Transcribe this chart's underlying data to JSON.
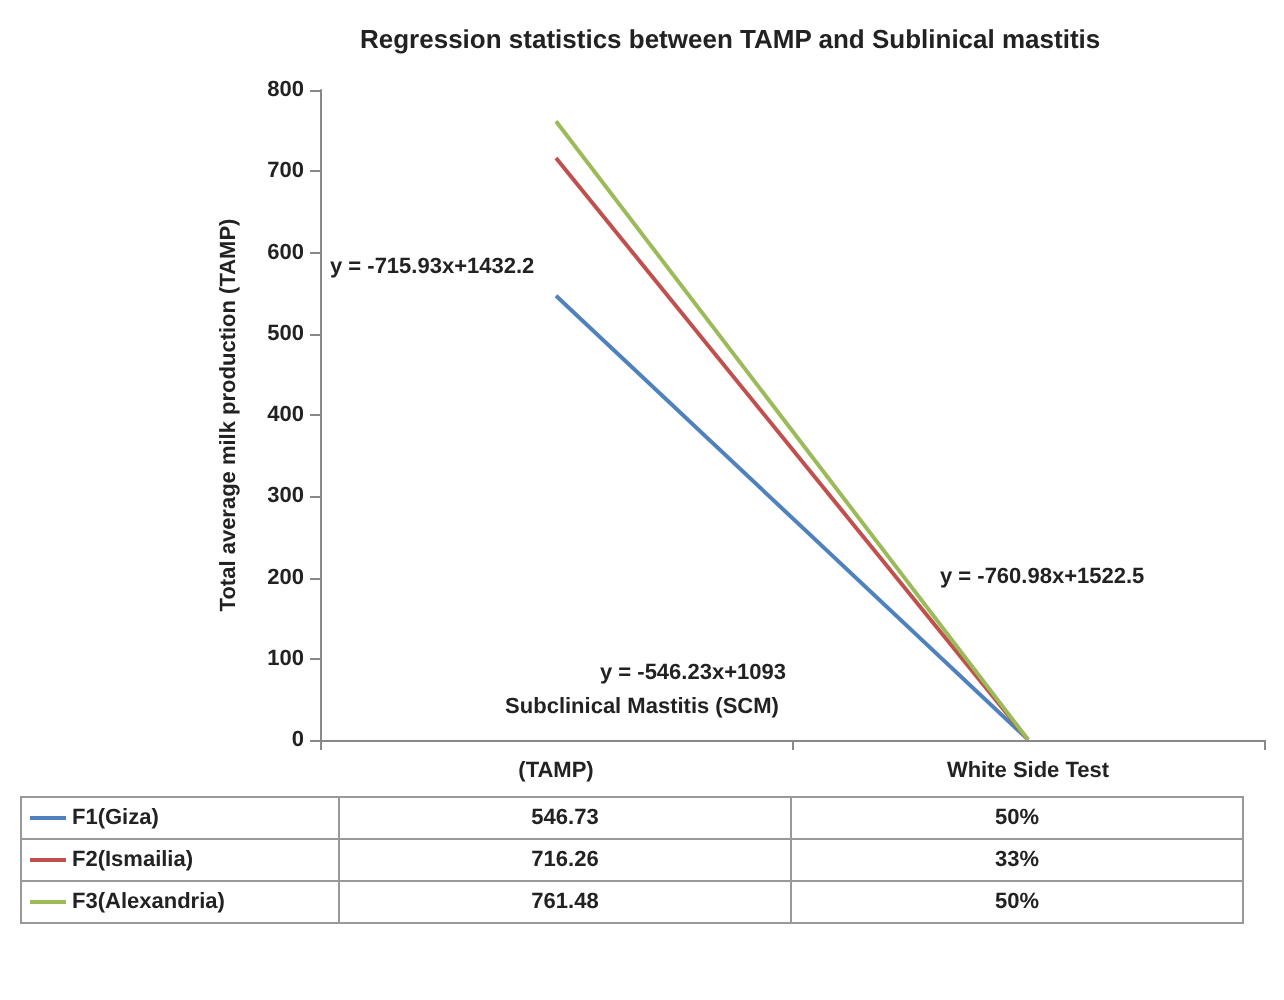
{
  "chart_data": {
    "type": "line",
    "title": "Regression statistics between TAMP and Sublinical mastitis",
    "xlabel": "Subclinical Mastitis (SCM)",
    "ylabel": "Total average milk production (TAMP)",
    "categories": [
      "(TAMP)",
      "White Side Test"
    ],
    "series": [
      {
        "name": "F1(Giza)",
        "color": "#4f81bd",
        "values": [
          546.73,
          0.5
        ],
        "value_labels": [
          "546.73",
          "50%"
        ]
      },
      {
        "name": "F2(Ismailia)",
        "color": "#c0504d",
        "values": [
          716.26,
          0.33
        ],
        "value_labels": [
          "716.26",
          "33%"
        ]
      },
      {
        "name": "F3(Alexandria)",
        "color": "#9bbb59",
        "values": [
          761.48,
          0.5
        ],
        "value_labels": [
          "761.48",
          "50%"
        ]
      }
    ],
    "ylim": [
      0,
      800
    ],
    "yticks": [
      0,
      100,
      200,
      300,
      400,
      500,
      600,
      700,
      800
    ],
    "legend": "bottom",
    "marker": "none",
    "line_style": "solid",
    "annotations": [
      "y = -715.93x+1432.2",
      "y = -760.98x+1522.5",
      "y = -546.23x+1093"
    ]
  }
}
